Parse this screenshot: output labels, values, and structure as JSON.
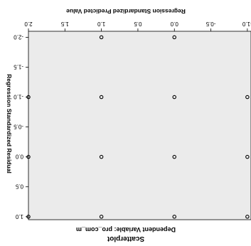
{
  "chart_data": {
    "type": "scatter",
    "title": "Scatterplot",
    "subtitle": "Dependent Variable: pro_com_m",
    "xlabel": "Regression Standardized Predicted Value",
    "ylabel": "Regression Standardized Residual",
    "xlim": [
      -1.05,
      2.0
    ],
    "ylim": [
      -2.1,
      1.05
    ],
    "x_ticks": [
      -1.0,
      -0.5,
      0.0,
      0.5,
      1.0,
      1.5,
      2.0
    ],
    "x_tick_labels": [
      "-1.0",
      "-0.5",
      "0.0",
      "0.5",
      "1.0",
      "1.5",
      "2.0"
    ],
    "y_ticks": [
      -2.0,
      -1.5,
      -1.0,
      -0.5,
      0.0,
      0.5,
      1.0
    ],
    "y_tick_labels": [
      "-2.0",
      "-1.5",
      "-1.0",
      "-0.5",
      "0.0",
      "0.5",
      "1.0"
    ],
    "grid": false,
    "plot_background": "#ebebeb",
    "marker_color": "#000000",
    "points": [
      {
        "x": 0.0,
        "y": -2.0
      },
      {
        "x": 1.0,
        "y": -2.0
      },
      {
        "x": -1.0,
        "y": -1.0
      },
      {
        "x": 0.0,
        "y": -1.0
      },
      {
        "x": 1.0,
        "y": -1.0
      },
      {
        "x": 2.0,
        "y": -1.0
      },
      {
        "x": -1.0,
        "y": 0.0
      },
      {
        "x": 0.0,
        "y": 0.0
      },
      {
        "x": 1.0,
        "y": 0.0
      },
      {
        "x": 2.0,
        "y": 0.0
      },
      {
        "x": -1.0,
        "y": 1.0
      },
      {
        "x": 0.0,
        "y": 1.0
      },
      {
        "x": 1.0,
        "y": 1.0
      },
      {
        "x": 2.0,
        "y": 1.0
      }
    ]
  }
}
